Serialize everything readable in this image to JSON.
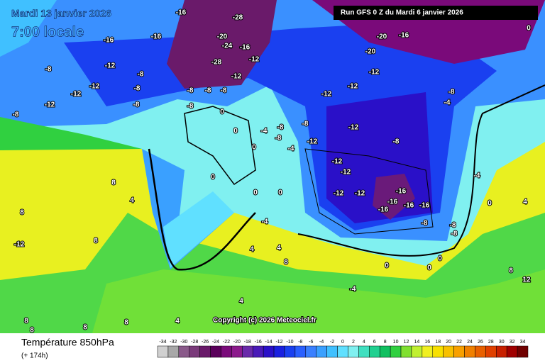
{
  "header": {
    "date": "Mardi 13 janvier 2026",
    "time": "7:00 locale",
    "run": "Run GFS 0 Z du Mardi 6 janvier 2026"
  },
  "copyright": "Copyright (c) 2026 Meteociel.fr",
  "footer": {
    "title": "Température 850hPa",
    "lead": "(+ 174h)"
  },
  "legend": {
    "ticks": [
      -34,
      -32,
      -30,
      -28,
      -26,
      -24,
      -22,
      -20,
      -18,
      -16,
      -14,
      -12,
      -10,
      -8,
      -6,
      -4,
      -2,
      0,
      2,
      4,
      6,
      8,
      10,
      12,
      14,
      16,
      18,
      20,
      22,
      24,
      26,
      28,
      30,
      32,
      34
    ],
    "colors": [
      "#d0d0d0",
      "#a8a8a8",
      "#8a5a8a",
      "#7a3a7a",
      "#6a1a6a",
      "#5a005a",
      "#7a0a7a",
      "#8c1a8c",
      "#6a2aaa",
      "#4a1ab8",
      "#2a10c8",
      "#1a20e0",
      "#1a40f0",
      "#2a60ff",
      "#3a80ff",
      "#3aa0ff",
      "#40c0ff",
      "#60e0ff",
      "#80f0f0",
      "#40e0c0",
      "#20d090",
      "#10c060",
      "#30d040",
      "#80e030",
      "#c0f030",
      "#f0f020",
      "#f8e000",
      "#f8c000",
      "#f8a000",
      "#f08000",
      "#e86000",
      "#e04000",
      "#c82000",
      "#a00000",
      "#700000"
    ]
  },
  "map": {
    "labels": [
      -16,
      -28,
      -20,
      -24,
      -16,
      -28,
      -12,
      -16,
      -16,
      -8,
      -12,
      -8,
      -12,
      -12,
      -12,
      -8,
      -8,
      -8,
      -8,
      -8,
      -8,
      -12,
      -8,
      0,
      0,
      -4,
      -8,
      -8,
      -8,
      -12,
      -12,
      -12,
      -12,
      -20,
      -16,
      -20,
      -12,
      -8,
      -12,
      -12,
      -12,
      -12,
      -16,
      -16,
      -16,
      -16,
      -16,
      -8,
      -8,
      -4,
      -8,
      -8,
      0,
      0,
      8,
      4,
      8,
      -12,
      -4,
      4,
      4,
      8,
      0,
      0,
      0,
      -4,
      0,
      4,
      8,
      12,
      -4,
      4,
      4,
      8,
      8,
      8,
      8,
      0,
      -4,
      0,
      0,
      8
    ]
  }
}
